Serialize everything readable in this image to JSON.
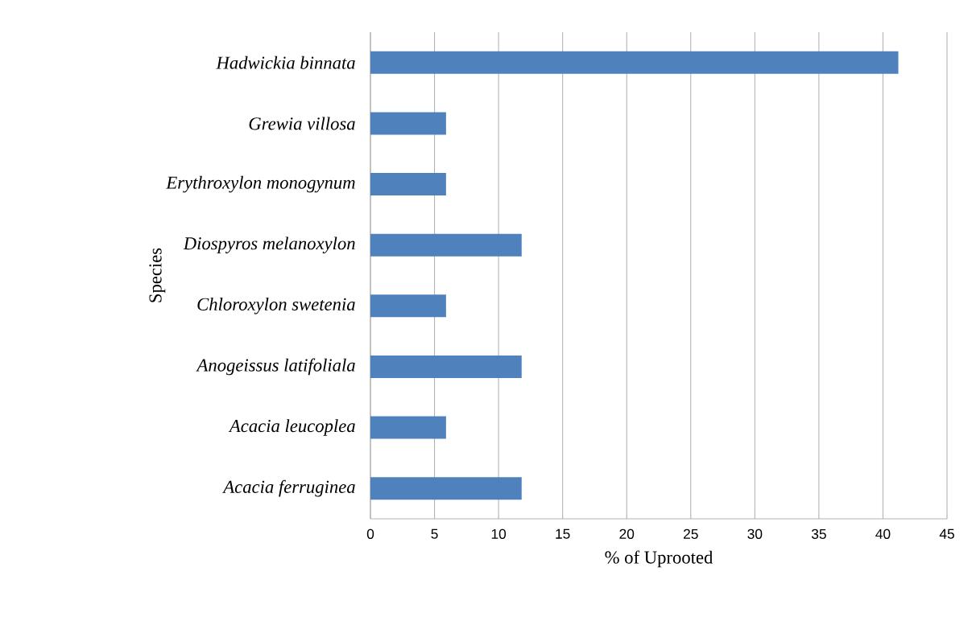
{
  "chart_data": {
    "type": "bar",
    "orientation": "horizontal",
    "xlabel": "% of Uprooted",
    "ylabel": "Species",
    "categories": [
      "*Hadwickia binnata*",
      "*Grewia villosa*",
      "*Erythroxylon monogynum*",
      "*Diospyros melanoxylon*",
      "*Chloroxylon swetenia*",
      "*Anogeissus latifoliala*",
      "*Acacia leucoplea*",
      "*Acacia ferruginea*"
    ],
    "values": [
      41.2,
      5.9,
      5.9,
      11.8,
      5.9,
      11.8,
      5.9,
      11.8
    ],
    "color": "#4f81bd",
    "xlim": [
      0,
      45
    ],
    "xticks": [
      0,
      5,
      10,
      15,
      20,
      25,
      30,
      35,
      40,
      45
    ],
    "grid": "x"
  }
}
